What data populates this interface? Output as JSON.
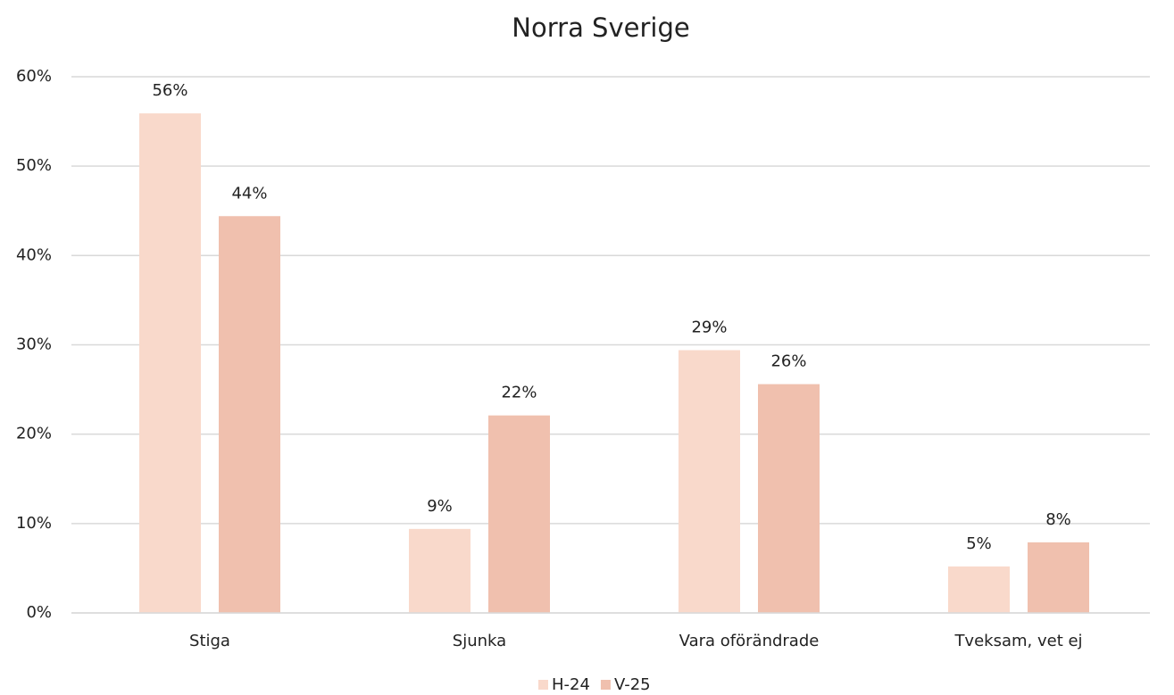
{
  "chart_data": {
    "type": "bar",
    "title": "Norra Sverige",
    "categories": [
      "Stiga",
      "Sjunka",
      "Vara oförändrade",
      "Tveksam, vet ej"
    ],
    "series": [
      {
        "name": "H-24",
        "color": "#f9d9cb",
        "values": [
          55.9,
          9.4,
          29.4,
          5.2
        ],
        "value_labels": [
          "56%",
          "9%",
          "29%",
          "5%"
        ]
      },
      {
        "name": "V-25",
        "color": "#f0c0ae",
        "values": [
          44.4,
          22.1,
          25.6,
          7.9
        ],
        "value_labels": [
          "44%",
          "22%",
          "26%",
          "8%"
        ]
      }
    ],
    "ylim": [
      0,
      60
    ],
    "yticks": [
      {
        "value": 0,
        "label": "0%"
      },
      {
        "value": 10,
        "label": "10%"
      },
      {
        "value": 20,
        "label": "20%"
      },
      {
        "value": 30,
        "label": "30%"
      },
      {
        "value": 40,
        "label": "40%"
      },
      {
        "value": 50,
        "label": "50%"
      },
      {
        "value": 60,
        "label": "60%"
      }
    ],
    "grid": true,
    "legend": "bottom"
  }
}
